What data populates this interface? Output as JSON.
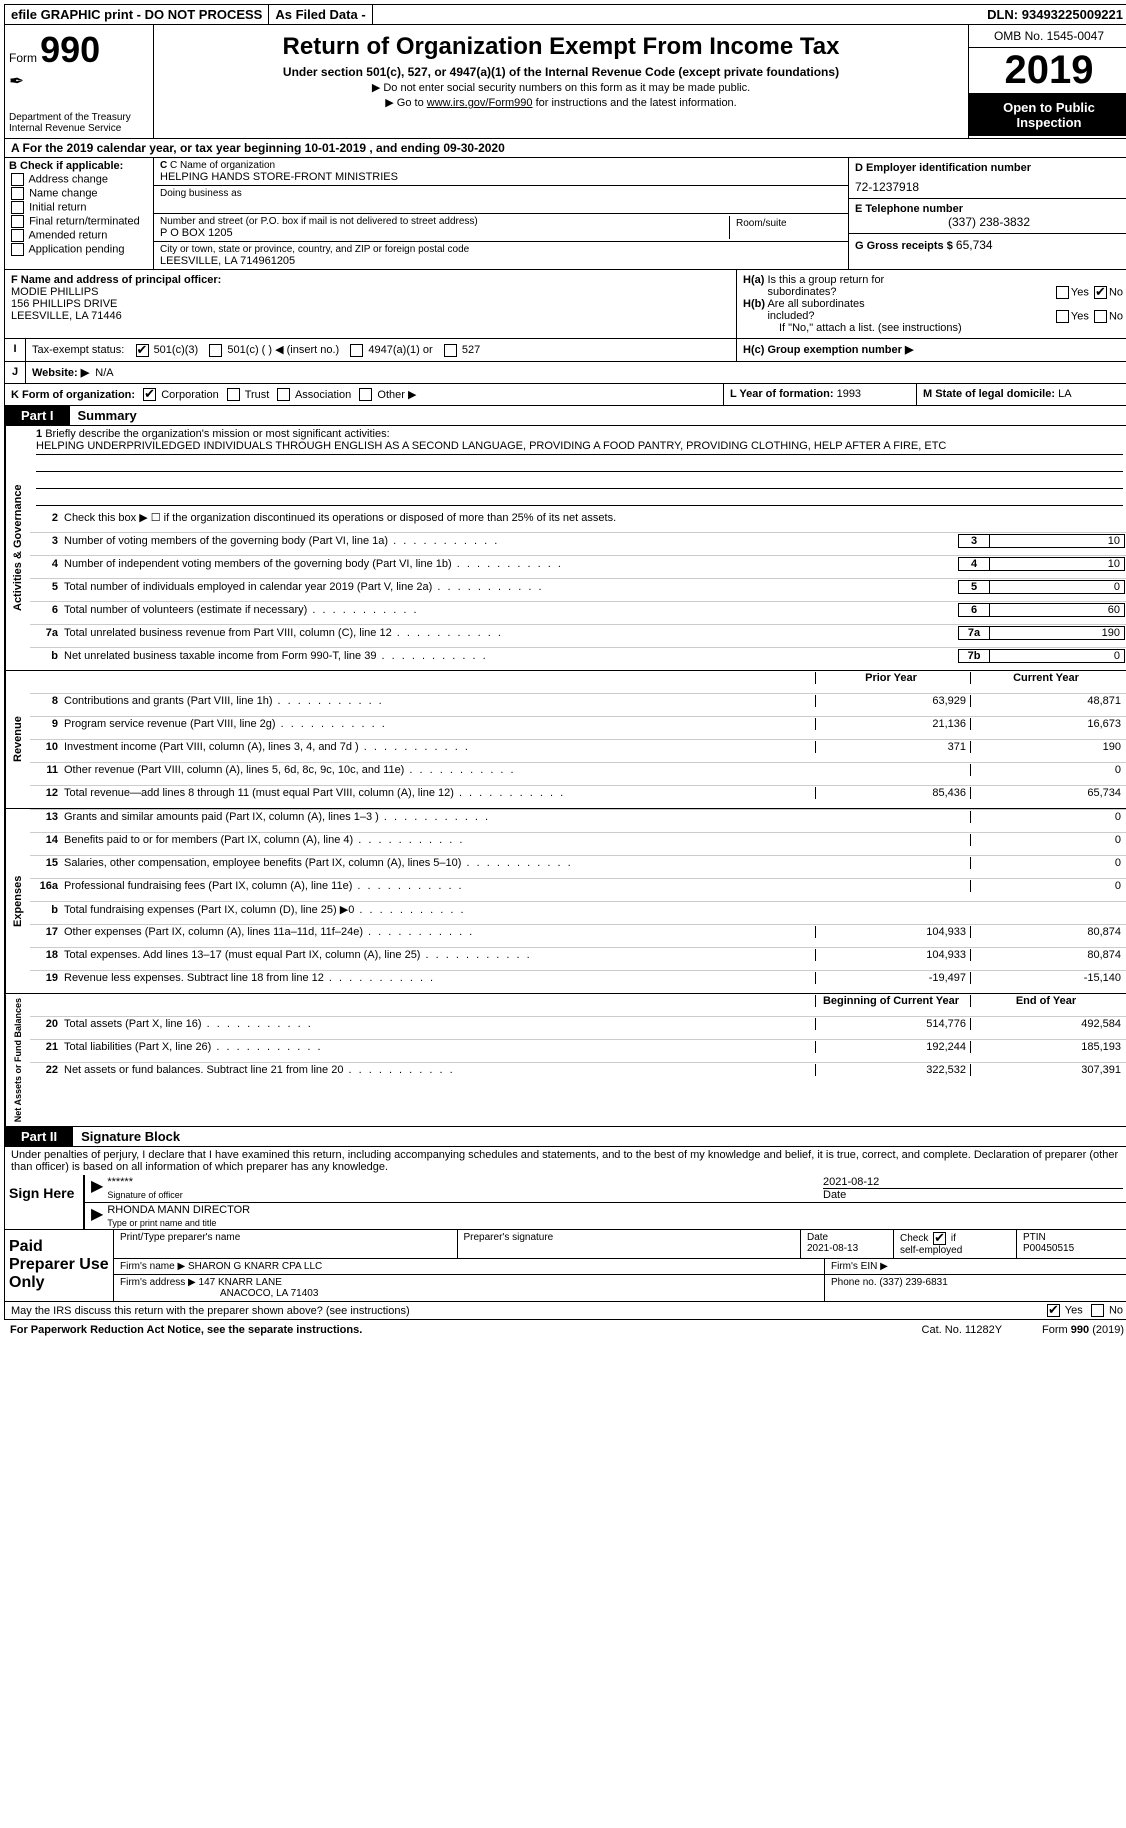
{
  "topbar": {
    "efile": "efile GRAPHIC print - DO NOT PROCESS",
    "asfiled": "As Filed Data -",
    "dln_label": "DLN:",
    "dln": "93493225009221"
  },
  "header": {
    "form_label": "Form",
    "form_num": "990",
    "dept": "Department of the Treasury\nInternal Revenue Service",
    "title": "Return of Organization Exempt From Income Tax",
    "subtitle": "Under section 501(c), 527, or 4947(a)(1) of the Internal Revenue Code (except private foundations)",
    "instr1": "▶ Do not enter social security numbers on this form as it may be made public.",
    "instr2": "▶ Go to www.irs.gov/Form990 for instructions and the latest information.",
    "omb": "OMB No. 1545-0047",
    "year": "2019",
    "open": "Open to Public Inspection"
  },
  "row_a": "A   For the 2019 calendar year, or tax year beginning 10-01-2019   , and ending 09-30-2020",
  "col_b": {
    "hdr": "B Check if applicable:",
    "items": [
      "Address change",
      "Name change",
      "Initial return",
      "Final return/terminated",
      "Amended return",
      "Application pending"
    ]
  },
  "org": {
    "name_label": "C Name of organization",
    "name": "HELPING HANDS STORE-FRONT MINISTRIES",
    "dba_label": "Doing business as",
    "dba": "",
    "addr_label": "Number and street (or P.O. box if mail is not delivered to street address)",
    "addr": "P O BOX 1205",
    "room_label": "Room/suite",
    "city_label": "City or town, state or province, country, and ZIP or foreign postal code",
    "city": "LEESVILLE, LA  714961205"
  },
  "col_d": {
    "ein_label": "D Employer identification number",
    "ein": "72-1237918",
    "phone_label": "E Telephone number",
    "phone": "(337) 238-3832",
    "gross_label": "G Gross receipts $",
    "gross": "65,734"
  },
  "f": {
    "label": "F  Name and address of principal officer:",
    "name": "MODIE PHILLIPS",
    "addr1": "156 PHILLIPS DRIVE",
    "addr2": "LEESVILLE, LA  71446"
  },
  "h": {
    "a_label": "H(a)  Is this a group return for subordinates?",
    "a_yes": "Yes",
    "a_no": "No",
    "b_label": "H(b)  Are all subordinates included?",
    "b_yes": "Yes",
    "b_no": "No",
    "b_note": "If \"No,\" attach a list. (see instructions)",
    "c_label": "H(c)  Group exemption number ▶"
  },
  "i": {
    "label": "Tax-exempt status:",
    "opt1": "501(c)(3)",
    "opt2": "501(c) (   ) ◀ (insert no.)",
    "opt3": "4947(a)(1) or",
    "opt4": "527"
  },
  "j": {
    "label": "Website: ▶",
    "val": "N/A"
  },
  "k": {
    "label": "K Form of organization:",
    "opts": [
      "Corporation",
      "Trust",
      "Association",
      "Other ▶"
    ]
  },
  "l": {
    "label": "L Year of formation:",
    "val": "1993"
  },
  "m": {
    "label": "M State of legal domicile:",
    "val": "LA"
  },
  "part1": {
    "tab": "Part I",
    "title": "Summary",
    "q1": "Briefly describe the organization's mission or most significant activities:",
    "mission": "HELPING UNDERPRIVILEDGED INDIVIDUALS THROUGH ENGLISH AS A SECOND LANGUAGE, PROVIDING A FOOD PANTRY, PROVIDING CLOTHING, HELP AFTER A FIRE, ETC",
    "q2": "Check this box ▶ ☐ if the organization discontinued its operations or disposed of more than 25% of its net assets.",
    "vert_gov": "Activities & Governance",
    "vert_rev": "Revenue",
    "vert_exp": "Expenses",
    "vert_net": "Net Assets or Fund Balances",
    "lines_gov": [
      {
        "n": "3",
        "d": "Number of voting members of the governing body (Part VI, line 1a)",
        "c": "3",
        "v": "10"
      },
      {
        "n": "4",
        "d": "Number of independent voting members of the governing body (Part VI, line 1b)",
        "c": "4",
        "v": "10"
      },
      {
        "n": "5",
        "d": "Total number of individuals employed in calendar year 2019 (Part V, line 2a)",
        "c": "5",
        "v": "0"
      },
      {
        "n": "6",
        "d": "Total number of volunteers (estimate if necessary)",
        "c": "6",
        "v": "60"
      },
      {
        "n": "7a",
        "d": "Total unrelated business revenue from Part VIII, column (C), line 12",
        "c": "7a",
        "v": "190"
      },
      {
        "n": "b",
        "d": "Net unrelated business taxable income from Form 990-T, line 39",
        "c": "7b",
        "v": "0"
      }
    ],
    "col_hdr_prior": "Prior Year",
    "col_hdr_curr": "Current Year",
    "lines_rev": [
      {
        "n": "8",
        "d": "Contributions and grants (Part VIII, line 1h)",
        "p": "63,929",
        "c": "48,871"
      },
      {
        "n": "9",
        "d": "Program service revenue (Part VIII, line 2g)",
        "p": "21,136",
        "c": "16,673"
      },
      {
        "n": "10",
        "d": "Investment income (Part VIII, column (A), lines 3, 4, and 7d )",
        "p": "371",
        "c": "190"
      },
      {
        "n": "11",
        "d": "Other revenue (Part VIII, column (A), lines 5, 6d, 8c, 9c, 10c, and 11e)",
        "p": "",
        "c": "0"
      },
      {
        "n": "12",
        "d": "Total revenue—add lines 8 through 11 (must equal Part VIII, column (A), line 12)",
        "p": "85,436",
        "c": "65,734"
      }
    ],
    "lines_exp": [
      {
        "n": "13",
        "d": "Grants and similar amounts paid (Part IX, column (A), lines 1–3 )",
        "p": "",
        "c": "0"
      },
      {
        "n": "14",
        "d": "Benefits paid to or for members (Part IX, column (A), line 4)",
        "p": "",
        "c": "0"
      },
      {
        "n": "15",
        "d": "Salaries, other compensation, employee benefits (Part IX, column (A), lines 5–10)",
        "p": "",
        "c": "0"
      },
      {
        "n": "16a",
        "d": "Professional fundraising fees (Part IX, column (A), line 11e)",
        "p": "",
        "c": "0"
      },
      {
        "n": "b",
        "d": "Total fundraising expenses (Part IX, column (D), line 25) ▶0",
        "p": "shaded",
        "c": "shaded"
      },
      {
        "n": "17",
        "d": "Other expenses (Part IX, column (A), lines 11a–11d, 11f–24e)",
        "p": "104,933",
        "c": "80,874"
      },
      {
        "n": "18",
        "d": "Total expenses. Add lines 13–17 (must equal Part IX, column (A), line 25)",
        "p": "104,933",
        "c": "80,874"
      },
      {
        "n": "19",
        "d": "Revenue less expenses. Subtract line 18 from line 12",
        "p": "-19,497",
        "c": "-15,140"
      }
    ],
    "col_hdr_beg": "Beginning of Current Year",
    "col_hdr_end": "End of Year",
    "lines_net": [
      {
        "n": "20",
        "d": "Total assets (Part X, line 16)",
        "p": "514,776",
        "c": "492,584"
      },
      {
        "n": "21",
        "d": "Total liabilities (Part X, line 26)",
        "p": "192,244",
        "c": "185,193"
      },
      {
        "n": "22",
        "d": "Net assets or fund balances. Subtract line 21 from line 20",
        "p": "322,532",
        "c": "307,391"
      }
    ]
  },
  "part2": {
    "tab": "Part II",
    "title": "Signature Block",
    "decl": "Under penalties of perjury, I declare that I have examined this return, including accompanying schedules and statements, and to the best of my knowledge and belief, it is true, correct, and complete. Declaration of preparer (other than officer) is based on all information of which preparer has any knowledge.",
    "sign_here": "Sign Here",
    "sig_stars": "******",
    "sig_label": "Signature of officer",
    "sig_date": "2021-08-12",
    "sig_date_label": "Date",
    "name_title": "RHONDA MANN  DIRECTOR",
    "name_title_label": "Type or print name and title",
    "paid_label": "Paid Preparer Use Only",
    "pp_name_label": "Print/Type preparer's name",
    "pp_sig_label": "Preparer's signature",
    "pp_date_label": "Date",
    "pp_date": "2021-08-13",
    "pp_check_label": "Check ☑ if self-employed",
    "pp_ptin_label": "PTIN",
    "pp_ptin": "P00450515",
    "firm_name_label": "Firm's name    ▶",
    "firm_name": "SHARON G KNARR CPA LLC",
    "firm_ein_label": "Firm's EIN ▶",
    "firm_addr_label": "Firm's address ▶",
    "firm_addr1": "147 KNARR LANE",
    "firm_addr2": "ANACOCO, LA  71403",
    "firm_phone_label": "Phone no.",
    "firm_phone": "(337) 239-6831",
    "discuss": "May the IRS discuss this return with the preparer shown above? (see instructions)",
    "yes": "Yes",
    "no": "No"
  },
  "footer": {
    "left": "For Paperwork Reduction Act Notice, see the separate instructions.",
    "center": "Cat. No. 11282Y",
    "right": "Form 990 (2019)"
  }
}
